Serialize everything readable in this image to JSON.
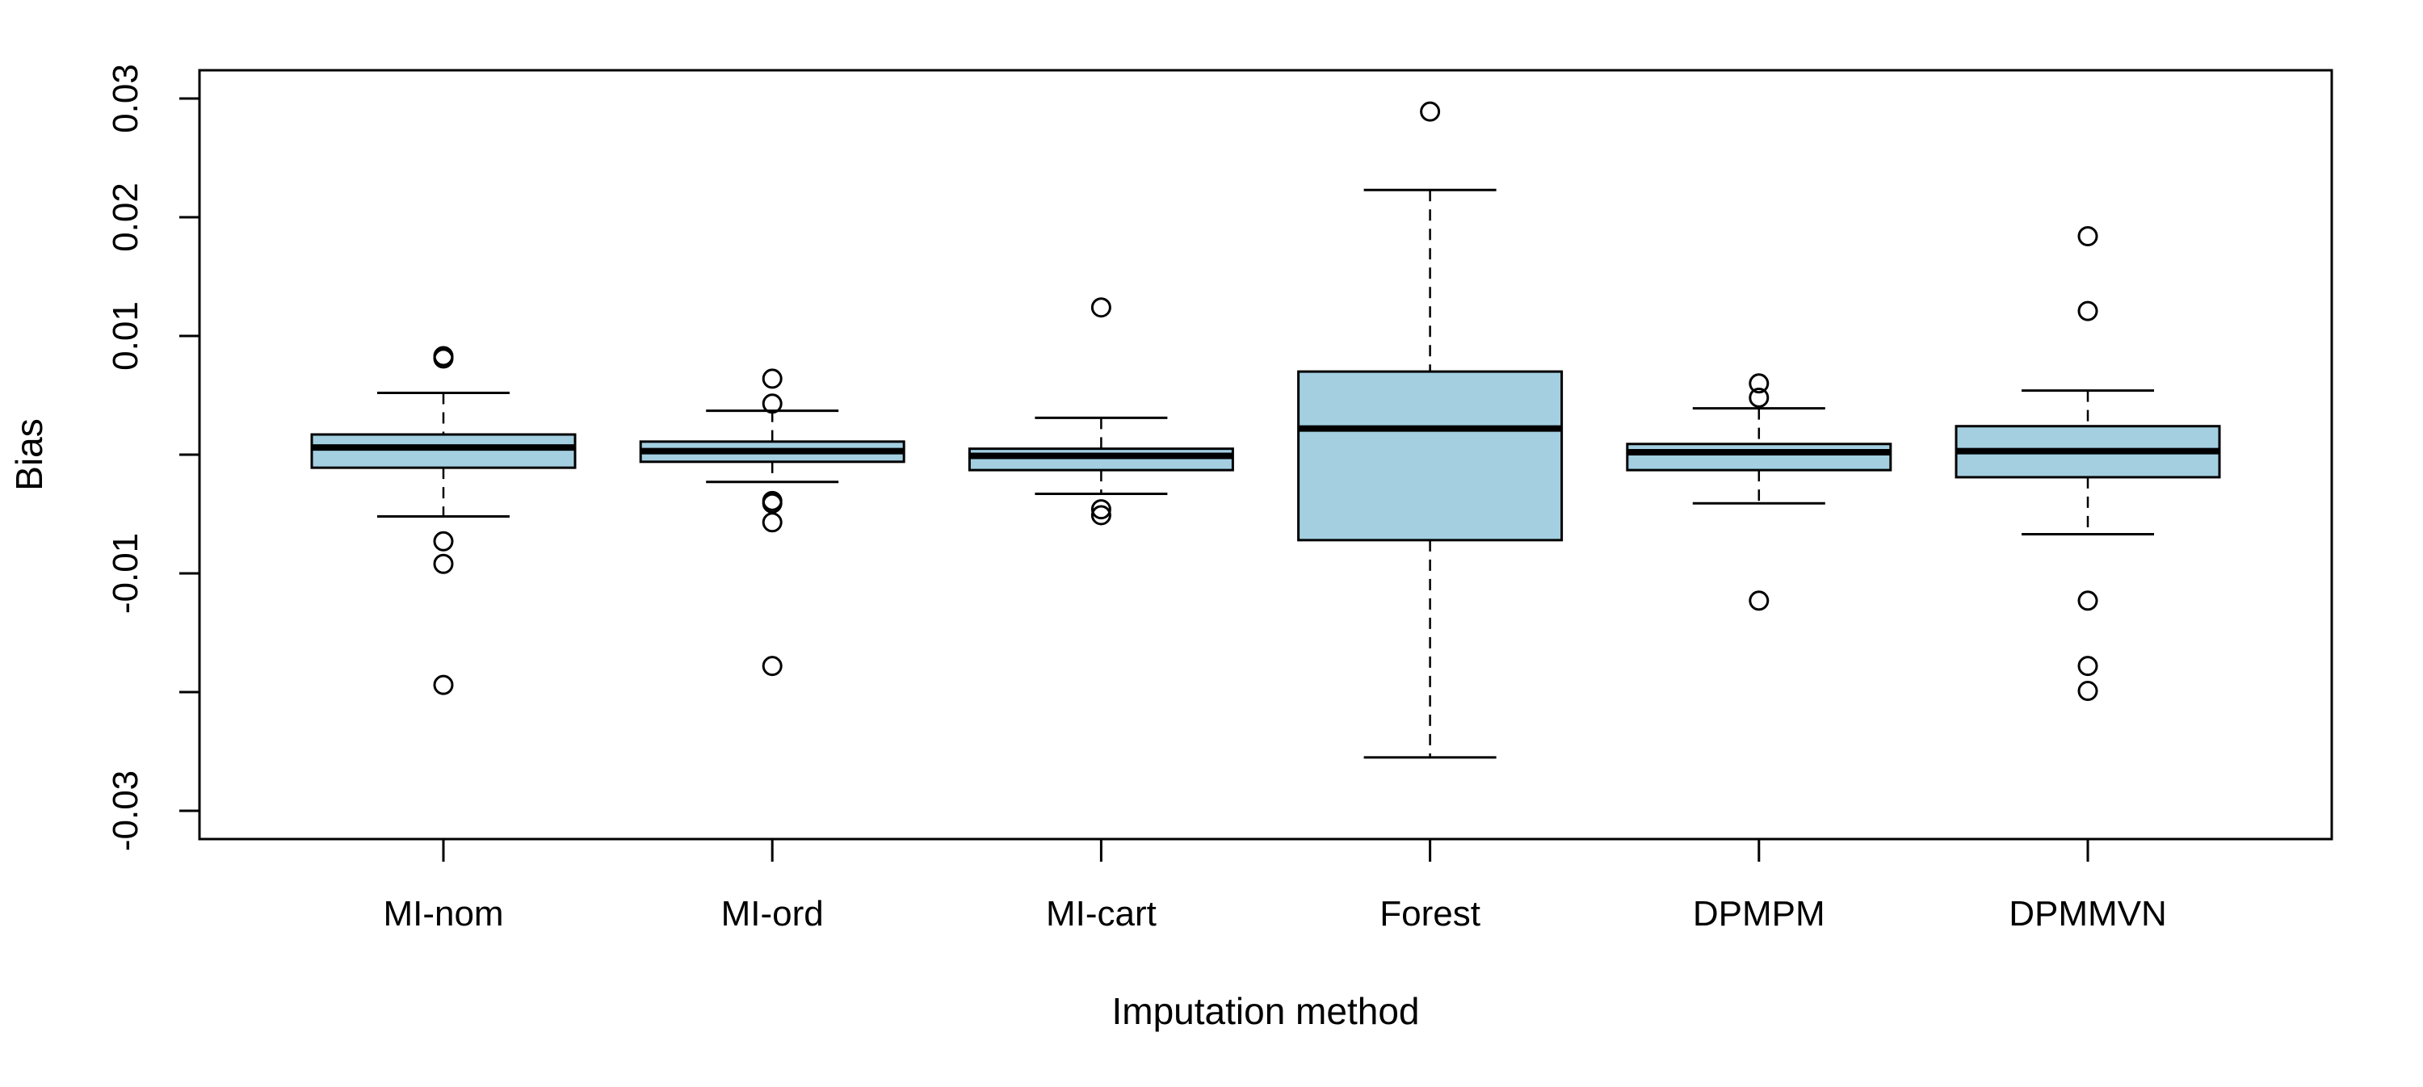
{
  "chart_data": {
    "type": "boxplot",
    "title": "",
    "xlabel": "Imputation method",
    "ylabel": "Bias",
    "ylim": [
      -0.032,
      0.033
    ],
    "yticks": [
      -0.03,
      -0.02,
      -0.01,
      0.0,
      0.01,
      0.02,
      0.03
    ],
    "ytick_labels": [
      "-0.03",
      "",
      "-0.01",
      "",
      "0.01",
      "0.02",
      "0.03"
    ],
    "box_color": "#a3cfe1",
    "grid": false,
    "categories": [
      "MI-nom",
      "MI-ord",
      "MI-cart",
      "Forest",
      "DPMPM",
      "DPMMVN"
    ],
    "boxes": [
      {
        "name": "MI-nom",
        "whisker_low": -0.0052,
        "q1": -0.0011,
        "median": 0.0006,
        "q3": 0.0017,
        "whisker_high": 0.0052,
        "outliers": [
          0.0081,
          0.0083,
          -0.0073,
          -0.0092,
          -0.0194
        ]
      },
      {
        "name": "MI-ord",
        "whisker_low": -0.0023,
        "q1": -0.0006,
        "median": 0.0003,
        "q3": 0.0011,
        "whisker_high": 0.0037,
        "outliers": [
          0.0064,
          0.0043,
          -0.0039,
          -0.0041,
          -0.0057,
          -0.0178
        ]
      },
      {
        "name": "MI-cart",
        "whisker_low": -0.0033,
        "q1": -0.0013,
        "median": -0.0001,
        "q3": 0.0005,
        "whisker_high": 0.0031,
        "outliers": [
          0.0124,
          -0.0046,
          -0.0051
        ]
      },
      {
        "name": "Forest",
        "whisker_low": -0.0255,
        "q1": -0.0072,
        "median": 0.0022,
        "q3": 0.007,
        "whisker_high": 0.0223,
        "outliers": [
          0.0289
        ]
      },
      {
        "name": "DPMPM",
        "whisker_low": -0.0041,
        "q1": -0.0013,
        "median": 0.0002,
        "q3": 0.0009,
        "whisker_high": 0.0039,
        "outliers": [
          0.006,
          0.0048,
          -0.0123
        ]
      },
      {
        "name": "DPMMVN",
        "whisker_low": -0.0067,
        "q1": -0.0019,
        "median": 0.0003,
        "q3": 0.0024,
        "whisker_high": 0.0054,
        "outliers": [
          0.0184,
          0.0121,
          -0.0123,
          -0.0178,
          -0.0199
        ]
      }
    ]
  }
}
